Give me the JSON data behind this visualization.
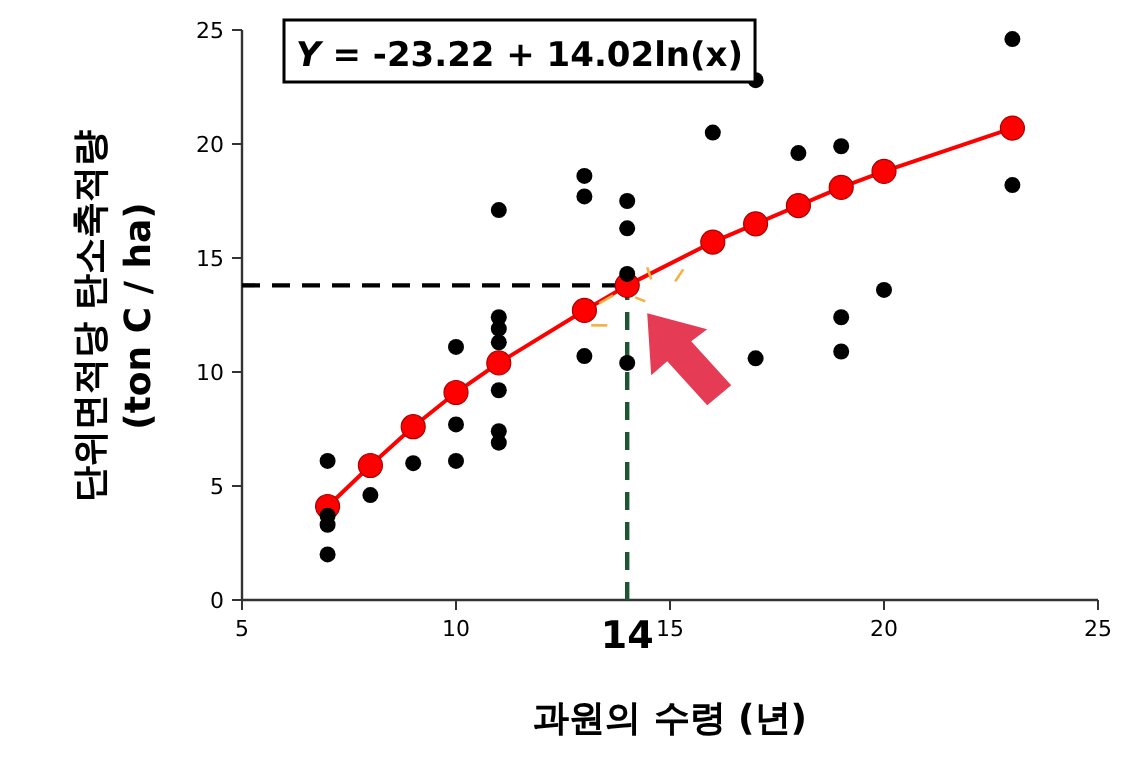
{
  "chart_data": {
    "type": "scatter",
    "xlabel": "과원의 수령 (년)",
    "ylabel": "단위면적당 탄소축적량 (ton C / ha)",
    "annotations": [
      "*Y* = -23.22 + 14.02ln(x)"
    ],
    "xlim": [
      5,
      25
    ],
    "xticks": [
      5,
      10,
      15,
      20,
      25
    ],
    "ylim": [
      0,
      25
    ],
    "yticks": [
      0,
      5,
      10,
      15,
      20,
      25
    ],
    "series": [
      {
        "type": "scatter",
        "color": "#000000",
        "marker": "circle",
        "x": [
          7,
          7,
          7,
          7,
          8,
          9,
          10,
          10,
          10,
          11,
          11,
          11,
          11,
          11,
          11,
          11,
          13,
          13,
          13,
          14,
          14,
          14,
          14,
          16,
          17,
          17,
          18,
          19,
          19,
          19,
          20,
          23,
          23
        ],
        "values": [
          6.1,
          3.7,
          3.3,
          2.0,
          4.6,
          6.0,
          11.1,
          7.7,
          6.1,
          17.1,
          12.4,
          11.9,
          11.3,
          9.2,
          7.4,
          6.9,
          18.6,
          17.7,
          10.7,
          17.5,
          16.3,
          14.3,
          10.4,
          20.5,
          22.8,
          10.6,
          19.6,
          19.9,
          12.4,
          10.9,
          13.6,
          24.6,
          18.2
        ]
      },
      {
        "type": "line",
        "color": "#ff0000",
        "marker": "circle",
        "x": [
          7,
          8,
          9,
          10,
          11,
          13,
          14,
          16,
          17,
          18,
          19,
          20,
          23
        ],
        "values": [
          4.1,
          5.9,
          7.6,
          9.1,
          10.4,
          12.7,
          13.8,
          15.7,
          16.5,
          17.3,
          18.1,
          18.8,
          20.7
        ]
      }
    ],
    "ref_lines": [
      {
        "axis": "y",
        "value": 13.8,
        "color": "#000000",
        "line_style": "dashed"
      },
      {
        "axis": "x",
        "value": 14,
        "label": "14",
        "color": "#1e5631",
        "line_style": "dashed"
      }
    ],
    "grid": false
  }
}
